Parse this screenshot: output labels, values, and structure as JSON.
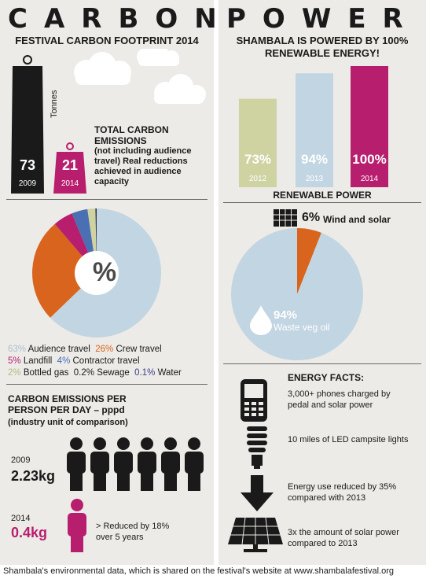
{
  "carbon": {
    "title": "CARBON",
    "subtitle": "FESTIVAL CARBON FOOTPRINT 2014",
    "tonnes_label": "Tonnes",
    "weights": [
      {
        "value": "73",
        "year": "2009"
      },
      {
        "value": "21",
        "year": "2014"
      }
    ],
    "total_title": "TOTAL CARBON EMISSIONS",
    "total_note": "(not including audience travel) Real reductions achieved in audience capacity",
    "pie_symbol": "%",
    "legend": [
      {
        "pct": "63%",
        "label": "Audience travel",
        "color": "#c2d5e2"
      },
      {
        "pct": "26%",
        "label": "Crew travel",
        "color": "#d9641e"
      },
      {
        "pct": "5%",
        "label": "Landfill",
        "color": "#b81e6e"
      },
      {
        "pct": "4%",
        "label": "Contractor travel",
        "color": "#4a6fb3"
      },
      {
        "pct": "2%",
        "label": "Bottled gas",
        "color": "#cfd3a2"
      },
      {
        "pct": "0.2%",
        "label": "Sewage",
        "color": "#1a1a1a"
      },
      {
        "pct": "0.1%",
        "label": "Water",
        "color": "#3d3d8a"
      }
    ],
    "pppd_title": "CARBON EMISSIONS PER PERSON PER DAY – pppd",
    "pppd_note": "(industry unit of comparison)",
    "pppd_2009_year": "2009",
    "pppd_2009_value": "2.23kg",
    "pppd_2014_year": "2014",
    "pppd_2014_value": "0.4kg",
    "reduction_note": "> Reduced by 18% over 5 years"
  },
  "power": {
    "title": "POWER",
    "subtitle": "SHAMBALA IS POWERED BY 100% RENEWABLE ENERGY!",
    "bars": [
      {
        "pct": "73%",
        "year": "2012",
        "value": 73,
        "color": "#cfd3a2"
      },
      {
        "pct": "94%",
        "year": "2013",
        "value": 94,
        "color": "#c2d5e2"
      },
      {
        "pct": "100%",
        "year": "2014",
        "value": 100,
        "color": "#b81e6e"
      }
    ],
    "bars_caption": "RENEWABLE POWER",
    "wind_pct": "6%",
    "wind_label": "Wind and solar",
    "veg_pct": "94%",
    "veg_label": "Waste veg oil",
    "facts_title": "ENERGY FACTS:",
    "facts": [
      "3,000+ phones charged by pedal and solar power",
      "10 miles of LED campsite lights",
      "Energy use reduced by 35% compared with 2013",
      "3x the amount of solar power compared to 2013"
    ]
  },
  "chart_data": [
    {
      "type": "pie",
      "categories": [
        "Audience travel",
        "Crew travel",
        "Landfill",
        "Contractor travel",
        "Bottled gas",
        "Sewage",
        "Water"
      ],
      "values": [
        63,
        26,
        5,
        4,
        2,
        0.2,
        0.1
      ]
    },
    {
      "type": "bar",
      "categories": [
        "2012",
        "2013",
        "2014"
      ],
      "values": [
        73,
        94,
        100
      ],
      "xlabel": "RENEWABLE POWER"
    },
    {
      "type": "pie",
      "categories": [
        "Wind and solar",
        "Waste veg oil"
      ],
      "values": [
        6,
        94
      ]
    }
  ],
  "footer": "Shambala's environmental data, which is shared on the festival's website at www.shambalafestival.org"
}
